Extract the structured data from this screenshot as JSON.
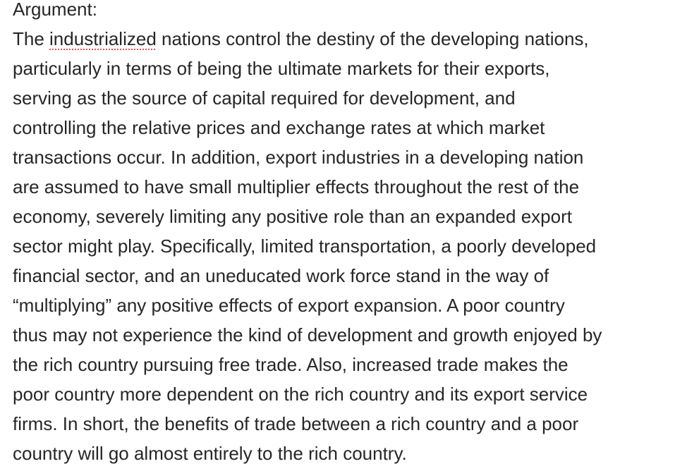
{
  "heading": "Argument:",
  "paragraph": {
    "line1_pre": "The ",
    "line1_misspelled": "industrialized",
    "line1_post": " nations control the destiny of the developing nations,",
    "lines": [
      "particularly in terms of being the ultimate markets for their exports,",
      "serving as the source of capital required for development, and",
      "controlling the relative prices and exchange rates at which market",
      "transactions occur. In addition, export industries in a developing nation",
      "are assumed to have small multiplier effects throughout the rest of the",
      "economy, severely limiting any positive role than an expanded export",
      "sector might play. Specifically, limited transportation, a poorly developed",
      "financial sector, and an uneducated work force stand in the way of",
      "“multiplying” any positive effects of export expansion. A poor country",
      "thus may not experience the kind of development and growth enjoyed by",
      "the rich country pursuing free trade. Also, increased trade makes the",
      "poor country more dependent on the rich country and its export service",
      "firms. In short, the benefits of trade between a rich country and a poor",
      "country will go almost entirely to the rich country."
    ]
  },
  "colors": {
    "text": "#262626",
    "spellcheck_underline": "#e0505a",
    "background": "#ffffff"
  }
}
